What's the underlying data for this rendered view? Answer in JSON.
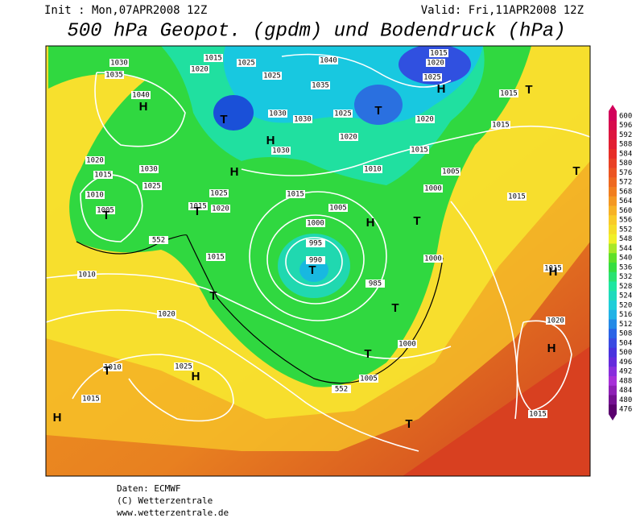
{
  "header": {
    "init": "Init : Mon,07APR2008 12Z",
    "valid": "Valid: Fri,11APR2008 12Z",
    "title": "500 hPa Geopot. (gpdm) und Bodendruck (hPa)"
  },
  "colorbar": {
    "labels": [
      600,
      596,
      592,
      588,
      584,
      580,
      576,
      572,
      568,
      564,
      560,
      556,
      552,
      548,
      544,
      540,
      536,
      532,
      528,
      524,
      520,
      516,
      512,
      508,
      504,
      500,
      496,
      492,
      488,
      484,
      480,
      476
    ]
  },
  "isobar_labels": [
    1030,
    1035,
    1015,
    1020,
    1025,
    1025,
    1040,
    1035,
    1015,
    1020,
    1025,
    1040,
    1030,
    1030,
    1025,
    1020,
    1020,
    1015,
    1015,
    1015,
    1030,
    1020,
    1015,
    1030,
    1025,
    1010,
    1025,
    1020,
    1015,
    1015,
    1010,
    1005,
    1000,
    1015,
    1005,
    1000,
    1005,
    995,
    990,
    1015,
    1000,
    985,
    1010,
    1015,
    1020,
    1000,
    1020,
    1025,
    1010,
    1005,
    1015,
    1015,
    552,
    552
  ],
  "pressure_centers": [
    "H",
    "T",
    "H",
    "H",
    "T",
    "H",
    "T",
    "T",
    "T",
    "H",
    "T",
    "T",
    "T",
    "T",
    "T",
    "T",
    "H",
    "H",
    "T",
    "H",
    "H",
    "T"
  ],
  "footer": {
    "source": "Daten: ECMWF",
    "copyright": "(C) Wetterzentrale",
    "url": "www.wetterzentrale.de"
  }
}
